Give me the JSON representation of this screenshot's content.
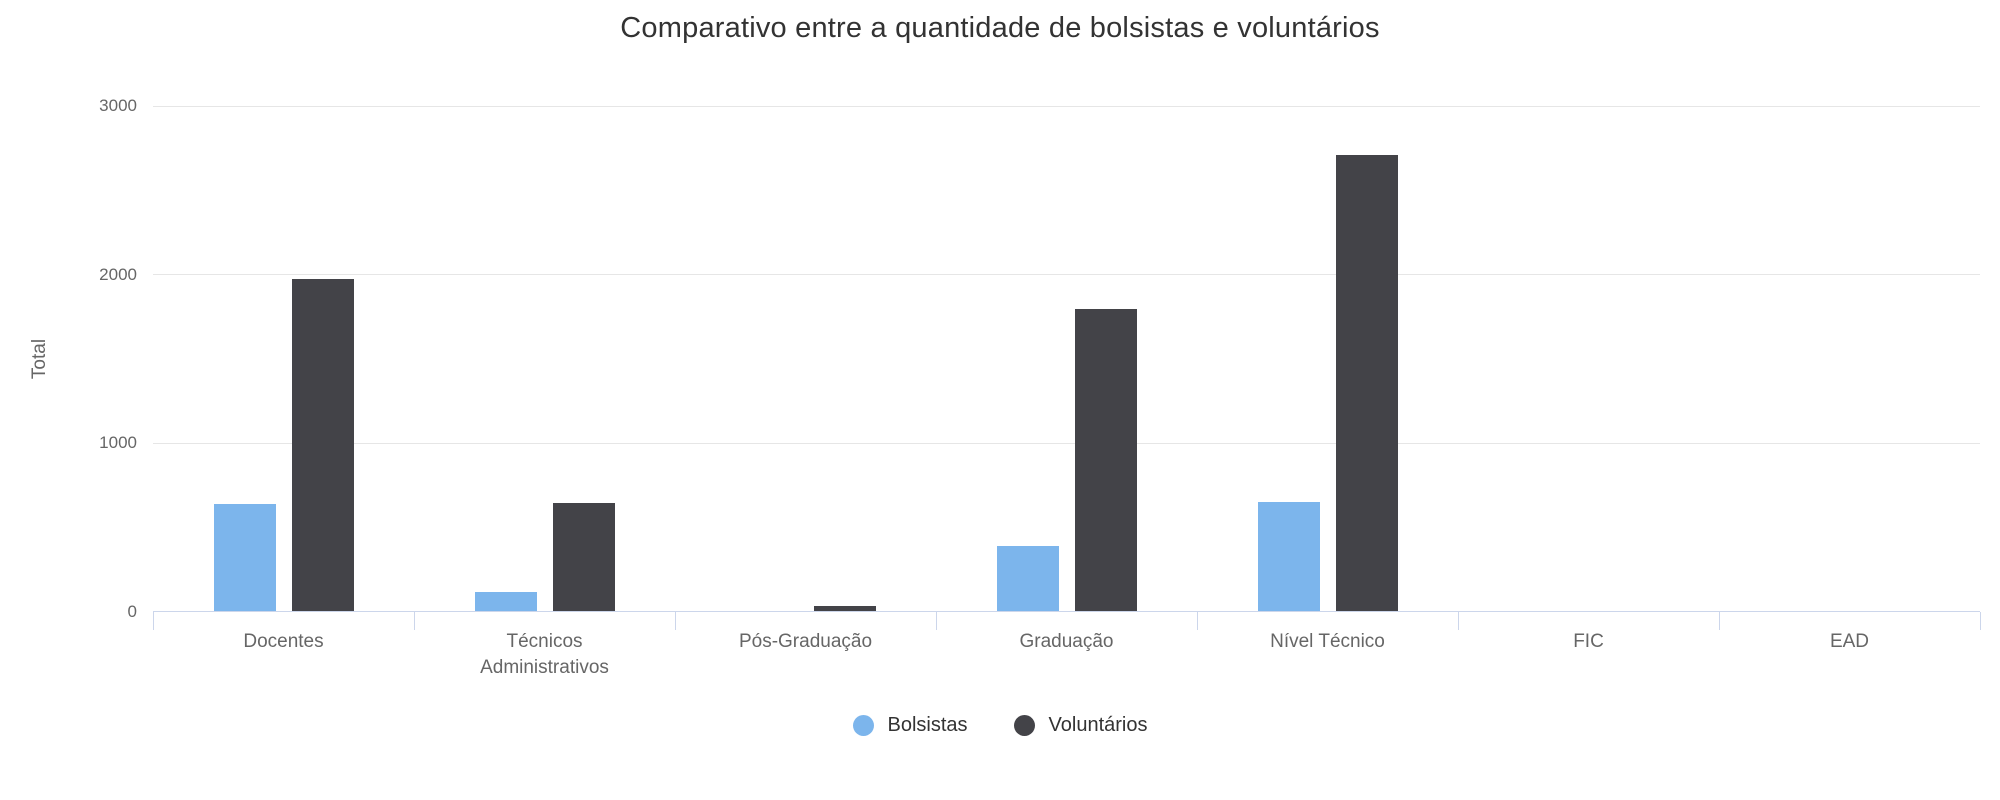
{
  "chart_data": {
    "type": "bar",
    "title": "Comparativo entre a quantidade de bolsistas e voluntários",
    "xlabel": "",
    "ylabel": "Total",
    "categories": [
      "Docentes",
      "Técnicos\nAdministrativos",
      "Pós-Graduação",
      "Graduação",
      "Nível Técnico",
      "FIC",
      "EAD"
    ],
    "series": [
      {
        "name": "Bolsistas",
        "color": "#7cb5ec",
        "values": [
          635,
          115,
          0,
          385,
          645,
          0,
          0
        ]
      },
      {
        "name": "Voluntários",
        "color": "#434348",
        "values": [
          1975,
          640,
          30,
          1795,
          2710,
          0,
          0
        ]
      }
    ],
    "ylim": [
      0,
      3000
    ],
    "y_ticks": [
      0,
      1000,
      2000,
      3000
    ],
    "grid": true,
    "legend_position": "bottom"
  },
  "colors": {
    "series_bolsistas": "#7cb5ec",
    "series_voluntarios": "#434348",
    "gridline": "#e6e6e6",
    "axis_line": "#ccd6eb",
    "axis_label": "#666666",
    "title_text": "#333333",
    "background": "#ffffff"
  }
}
